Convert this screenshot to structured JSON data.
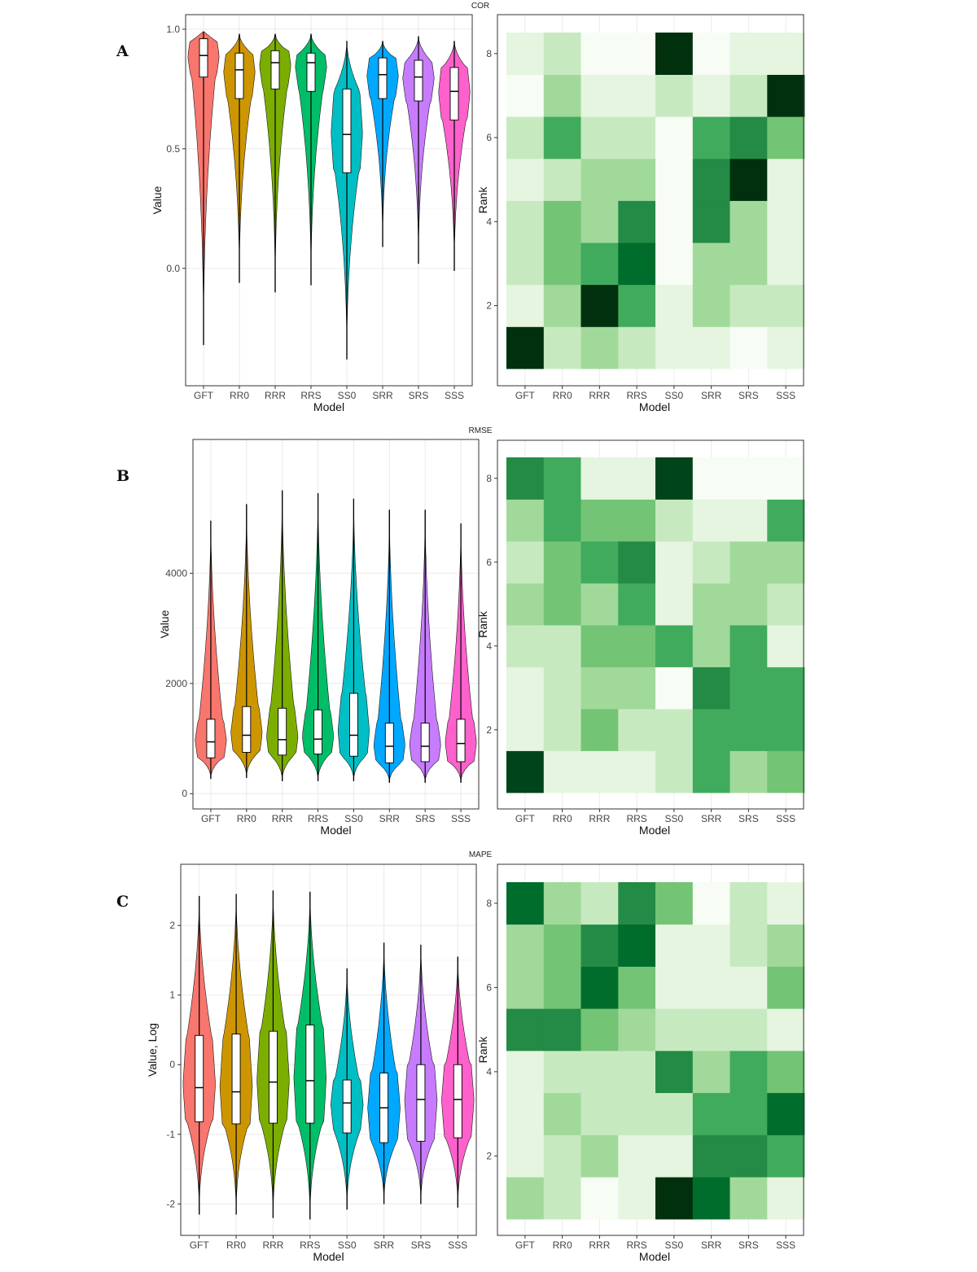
{
  "chart_data": [
    {
      "panel": "A",
      "title": "COR",
      "violin": {
        "type": "violin",
        "xlabel": "Model",
        "ylabel": "Value",
        "categories": [
          "GFT",
          "RR0",
          "RRR",
          "RRS",
          "SS0",
          "SRR",
          "SRS",
          "SSS"
        ],
        "colors": [
          "#F8766D",
          "#CD9600",
          "#7CAE00",
          "#00BE67",
          "#00BFC4",
          "#00A9FF",
          "#C77CFF",
          "#FF61CC"
        ],
        "ylim": [
          -0.45,
          1.02
        ],
        "yticks": [
          0.0,
          0.5,
          1.0
        ],
        "ytick_labels": [
          "0.0",
          "0.5",
          "1.0"
        ],
        "stats": [
          {
            "min": -0.32,
            "q1": 0.8,
            "median": 0.89,
            "q3": 0.96,
            "max": 0.99
          },
          {
            "min": -0.06,
            "q1": 0.71,
            "median": 0.83,
            "q3": 0.9,
            "max": 0.98
          },
          {
            "min": -0.1,
            "q1": 0.75,
            "median": 0.86,
            "q3": 0.91,
            "max": 0.98
          },
          {
            "min": -0.07,
            "q1": 0.74,
            "median": 0.86,
            "q3": 0.9,
            "max": 0.98
          },
          {
            "min": -0.38,
            "q1": 0.4,
            "median": 0.56,
            "q3": 0.75,
            "max": 0.95
          },
          {
            "min": 0.09,
            "q1": 0.71,
            "median": 0.81,
            "q3": 0.88,
            "max": 0.95
          },
          {
            "min": 0.02,
            "q1": 0.7,
            "median": 0.8,
            "q3": 0.87,
            "max": 0.97
          },
          {
            "min": -0.01,
            "q1": 0.62,
            "median": 0.74,
            "q3": 0.84,
            "max": 0.95
          }
        ]
      },
      "heatmap": {
        "type": "heatmap",
        "xlabel": "Model",
        "ylabel": "Rank",
        "categories": [
          "GFT",
          "RR0",
          "RRR",
          "RRS",
          "SS0",
          "SRR",
          "SRS",
          "SSS"
        ],
        "ranks": [
          1,
          2,
          3,
          4,
          5,
          6,
          7,
          8
        ],
        "yticks": [
          2,
          4,
          6,
          8
        ],
        "levels": [
          [
            9,
            2,
            3,
            2,
            1,
            1,
            0,
            1
          ],
          [
            1,
            3,
            9,
            5,
            1,
            3,
            2,
            2
          ],
          [
            2,
            4,
            5,
            7,
            0,
            3,
            3,
            1
          ],
          [
            2,
            4,
            3,
            6,
            0,
            6,
            3,
            1
          ],
          [
            1,
            2,
            3,
            3,
            0,
            6,
            9,
            1
          ],
          [
            2,
            5,
            2,
            2,
            0,
            5,
            6,
            4
          ],
          [
            0,
            3,
            1,
            1,
            2,
            1,
            2,
            9
          ],
          [
            1,
            2,
            0,
            0,
            9,
            0,
            1,
            1
          ]
        ]
      }
    },
    {
      "panel": "B",
      "title": "RMSE",
      "violin": {
        "type": "violin",
        "xlabel": "Model",
        "ylabel": "Value",
        "categories": [
          "GFT",
          "RR0",
          "RRR",
          "RRS",
          "SS0",
          "SRR",
          "SRS",
          "SSS"
        ],
        "colors": [
          "#F8766D",
          "#CD9600",
          "#7CAE00",
          "#00BE67",
          "#00BFC4",
          "#00A9FF",
          "#C77CFF",
          "#FF61CC"
        ],
        "ylim": [
          -100,
          6250
        ],
        "yticks": [
          0,
          2000,
          4000
        ],
        "ytick_labels": [
          "0",
          "2000",
          "4000"
        ],
        "stats": [
          {
            "min": 270,
            "q1": 650,
            "median": 940,
            "q3": 1350,
            "max": 4950
          },
          {
            "min": 290,
            "q1": 750,
            "median": 1060,
            "q3": 1580,
            "max": 5250
          },
          {
            "min": 230,
            "q1": 700,
            "median": 980,
            "q3": 1550,
            "max": 5500
          },
          {
            "min": 230,
            "q1": 720,
            "median": 990,
            "q3": 1520,
            "max": 5450
          },
          {
            "min": 230,
            "q1": 680,
            "median": 1060,
            "q3": 1820,
            "max": 5350
          },
          {
            "min": 200,
            "q1": 560,
            "median": 860,
            "q3": 1280,
            "max": 5150
          },
          {
            "min": 200,
            "q1": 580,
            "median": 860,
            "q3": 1280,
            "max": 5150
          },
          {
            "min": 200,
            "q1": 580,
            "median": 910,
            "q3": 1350,
            "max": 4900
          }
        ]
      },
      "heatmap": {
        "type": "heatmap",
        "xlabel": "Model",
        "ylabel": "Rank",
        "categories": [
          "GFT",
          "RR0",
          "RRR",
          "RRS",
          "SS0",
          "SRR",
          "SRS",
          "SSS"
        ],
        "ranks": [
          1,
          2,
          3,
          4,
          5,
          6,
          7,
          8
        ],
        "yticks": [
          2,
          4,
          6,
          8
        ],
        "levels": [
          [
            8,
            1,
            1,
            1,
            2,
            5,
            3,
            4
          ],
          [
            1,
            2,
            4,
            2,
            2,
            5,
            5,
            5
          ],
          [
            1,
            2,
            3,
            3,
            0,
            6,
            5,
            5
          ],
          [
            2,
            2,
            4,
            4,
            5,
            3,
            5,
            1
          ],
          [
            3,
            4,
            3,
            5,
            1,
            3,
            3,
            2
          ],
          [
            2,
            4,
            5,
            6,
            1,
            2,
            3,
            3
          ],
          [
            3,
            5,
            4,
            4,
            2,
            1,
            1,
            5
          ],
          [
            6,
            5,
            1,
            1,
            8,
            0,
            0,
            0
          ]
        ]
      }
    },
    {
      "panel": "C",
      "title": "MAPE",
      "violin": {
        "type": "violin",
        "xlabel": "Model",
        "ylabel": "Value, Log",
        "categories": [
          "GFT",
          "RR0",
          "RRR",
          "RRS",
          "SS0",
          "SRR",
          "SRS",
          "SSS"
        ],
        "colors": [
          "#F8766D",
          "#CD9600",
          "#7CAE00",
          "#00BE67",
          "#00BFC4",
          "#00A9FF",
          "#C77CFF",
          "#FF61CC"
        ],
        "ylim": [
          -2.3,
          2.75
        ],
        "yticks": [
          -2,
          -1,
          0,
          1,
          2
        ],
        "ytick_labels": [
          "-2",
          "-1",
          "0",
          "1",
          "2"
        ],
        "stats": [
          {
            "min": -2.15,
            "q1": -0.82,
            "median": -0.33,
            "q3": 0.42,
            "max": 2.42
          },
          {
            "min": -2.15,
            "q1": -0.85,
            "median": -0.39,
            "q3": 0.44,
            "max": 2.45
          },
          {
            "min": -2.2,
            "q1": -0.84,
            "median": -0.25,
            "q3": 0.48,
            "max": 2.5
          },
          {
            "min": -2.22,
            "q1": -0.84,
            "median": -0.23,
            "q3": 0.57,
            "max": 2.48
          },
          {
            "min": -2.08,
            "q1": -0.98,
            "median": -0.55,
            "q3": -0.22,
            "max": 1.38
          },
          {
            "min": -2.0,
            "q1": -1.12,
            "median": -0.62,
            "q3": -0.12,
            "max": 1.75
          },
          {
            "min": -2.0,
            "q1": -1.1,
            "median": -0.5,
            "q3": 0.0,
            "max": 1.72
          },
          {
            "min": -2.05,
            "q1": -1.05,
            "median": -0.5,
            "q3": 0.0,
            "max": 1.55
          }
        ]
      },
      "heatmap": {
        "type": "heatmap",
        "xlabel": "Model",
        "ylabel": "Rank",
        "categories": [
          "GFT",
          "RR0",
          "RRR",
          "RRS",
          "SS0",
          "SRR",
          "SRS",
          "SSS"
        ],
        "ranks": [
          1,
          2,
          3,
          4,
          5,
          6,
          7,
          8
        ],
        "yticks": [
          2,
          4,
          6,
          8
        ],
        "levels": [
          [
            3,
            2,
            0,
            1,
            9,
            7,
            3,
            1
          ],
          [
            1,
            2,
            3,
            1,
            1,
            6,
            6,
            5
          ],
          [
            1,
            3,
            2,
            2,
            2,
            5,
            5,
            7
          ],
          [
            1,
            2,
            2,
            2,
            6,
            3,
            5,
            4
          ],
          [
            6,
            6,
            4,
            3,
            2,
            2,
            2,
            1
          ],
          [
            3,
            4,
            7,
            4,
            1,
            1,
            1,
            4
          ],
          [
            3,
            4,
            6,
            7,
            1,
            1,
            2,
            3
          ],
          [
            7,
            3,
            2,
            6,
            4,
            0,
            2,
            1
          ]
        ]
      }
    }
  ],
  "palette": {
    "heat_levels": [
      "#f7fcf5",
      "#e5f5e0",
      "#c7e9c0",
      "#a1d99b",
      "#74c476",
      "#41ab5d",
      "#238b45",
      "#006d2c",
      "#00441b",
      "#00300d"
    ],
    "grid": "#ebebeb",
    "frame": "#333333"
  }
}
